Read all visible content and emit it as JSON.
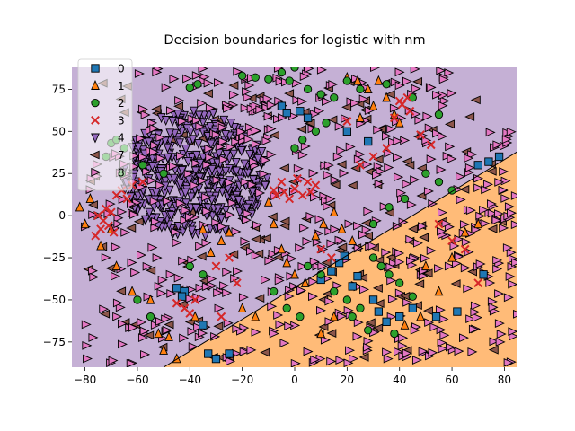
{
  "chart_data": {
    "type": "scatter",
    "title": "Decision boundaries for logistic with nm",
    "xlabel": "",
    "ylabel": "",
    "xlim": [
      -85,
      85
    ],
    "ylim": [
      -90,
      88
    ],
    "x_ticks": [
      -80,
      -60,
      -40,
      -20,
      0,
      20,
      40,
      60,
      80
    ],
    "y_ticks": [
      -75,
      -50,
      -25,
      0,
      25,
      50,
      75
    ],
    "grid": false,
    "legend_position": "top-left",
    "regions": [
      {
        "class": "4",
        "color": "#c5b0d5",
        "description": "upper-left region"
      },
      {
        "class": "8",
        "color": "#ffbb78",
        "description": "lower-right region"
      }
    ],
    "boundary_line": {
      "x": [
        -50,
        85
      ],
      "y": [
        -90,
        38
      ]
    },
    "series": [
      {
        "name": "0",
        "marker": "square",
        "color": "#1f77b4",
        "points": [
          [
            -45,
            -43
          ],
          [
            -42,
            -45
          ],
          [
            -35,
            -65
          ],
          [
            -33,
            -82
          ],
          [
            -30,
            -85
          ],
          [
            -25,
            -82
          ],
          [
            -5,
            65
          ],
          [
            -3,
            61
          ],
          [
            2,
            62
          ],
          [
            5,
            58
          ],
          [
            10,
            -38
          ],
          [
            14,
            -33
          ],
          [
            17,
            -28
          ],
          [
            19,
            -24
          ],
          [
            22,
            -42
          ],
          [
            24,
            -36
          ],
          [
            30,
            -50
          ],
          [
            32,
            -57
          ],
          [
            35,
            -63
          ],
          [
            40,
            -60
          ],
          [
            45,
            -55
          ],
          [
            54,
            -60
          ],
          [
            62,
            -57
          ],
          [
            70,
            30
          ],
          [
            74,
            32
          ],
          [
            78,
            35
          ],
          [
            72,
            -35
          ],
          [
            20,
            50
          ],
          [
            28,
            44
          ],
          [
            -43,
            -48
          ]
        ]
      },
      {
        "name": "1",
        "marker": "triangle-up",
        "color": "#ff7f0e",
        "points": [
          [
            -80,
            -5
          ],
          [
            -82,
            5
          ],
          [
            -78,
            10
          ],
          [
            -70,
            -8
          ],
          [
            -74,
            -18
          ],
          [
            -68,
            -30
          ],
          [
            -62,
            -45
          ],
          [
            -55,
            -50
          ],
          [
            -52,
            -70
          ],
          [
            -48,
            -72
          ],
          [
            -38,
            -60
          ],
          [
            -10,
            8
          ],
          [
            -8,
            -5
          ],
          [
            -5,
            -20
          ],
          [
            -3,
            -28
          ],
          [
            0,
            -35
          ],
          [
            4,
            -40
          ],
          [
            8,
            -12
          ],
          [
            11,
            -5
          ],
          [
            15,
            2
          ],
          [
            18,
            -8
          ],
          [
            22,
            -15
          ],
          [
            25,
            58
          ],
          [
            30,
            65
          ],
          [
            35,
            70
          ],
          [
            38,
            60
          ],
          [
            40,
            55
          ],
          [
            28,
            75
          ],
          [
            32,
            80
          ],
          [
            -50,
            -80
          ],
          [
            -45,
            -85
          ],
          [
            20,
            82
          ],
          [
            24,
            80
          ],
          [
            50,
            -30
          ],
          [
            55,
            -45
          ],
          [
            60,
            -25
          ],
          [
            65,
            -10
          ],
          [
            70,
            -5
          ],
          [
            42,
            -65
          ],
          [
            48,
            -60
          ],
          [
            15,
            -60
          ],
          [
            10,
            -70
          ],
          [
            -15,
            -60
          ],
          [
            -20,
            -55
          ],
          [
            -25,
            -10
          ],
          [
            -28,
            -15
          ],
          [
            -32,
            -22
          ],
          [
            -35,
            -8
          ]
        ]
      },
      {
        "name": "2",
        "marker": "circle",
        "color": "#2ca02c",
        "points": [
          [
            -40,
            76
          ],
          [
            -37,
            78
          ],
          [
            -20,
            83
          ],
          [
            -15,
            82
          ],
          [
            -10,
            81
          ],
          [
            -5,
            85
          ],
          [
            0,
            88
          ],
          [
            -2,
            80
          ],
          [
            5,
            75
          ],
          [
            10,
            72
          ],
          [
            15,
            70
          ],
          [
            20,
            80
          ],
          [
            25,
            75
          ],
          [
            35,
            78
          ],
          [
            45,
            70
          ],
          [
            55,
            60
          ],
          [
            -70,
            43
          ],
          [
            -68,
            45
          ],
          [
            -65,
            40
          ],
          [
            -72,
            35
          ],
          [
            -66,
            25
          ],
          [
            -58,
            30
          ],
          [
            -50,
            25
          ],
          [
            5,
            -30
          ],
          [
            10,
            -35
          ],
          [
            15,
            -45
          ],
          [
            20,
            -50
          ],
          [
            25,
            -55
          ],
          [
            30,
            -25
          ],
          [
            33,
            -30
          ],
          [
            36,
            -35
          ],
          [
            40,
            -40
          ],
          [
            45,
            -48
          ],
          [
            38,
            -70
          ],
          [
            22,
            -60
          ],
          [
            28,
            -68
          ],
          [
            -8,
            -45
          ],
          [
            -3,
            -55
          ],
          [
            2,
            -60
          ],
          [
            0,
            40
          ],
          [
            3,
            45
          ],
          [
            8,
            50
          ],
          [
            12,
            55
          ],
          [
            50,
            25
          ],
          [
            55,
            20
          ],
          [
            60,
            15
          ],
          [
            42,
            10
          ],
          [
            36,
            5
          ],
          [
            30,
            -5
          ],
          [
            -40,
            -30
          ],
          [
            -35,
            -35
          ],
          [
            -60,
            -50
          ],
          [
            -55,
            -60
          ]
        ]
      },
      {
        "name": "3",
        "marker": "x",
        "color": "#d62728",
        "points": [
          [
            -75,
            0
          ],
          [
            -73,
            -3
          ],
          [
            -71,
            -6
          ],
          [
            -72,
            4
          ],
          [
            -70,
            2
          ],
          [
            -69,
            -10
          ],
          [
            -74,
            -8
          ],
          [
            -76,
            -12
          ],
          [
            -68,
            12
          ],
          [
            -66,
            15
          ],
          [
            -64,
            10
          ],
          [
            -62,
            18
          ],
          [
            -58,
            20
          ],
          [
            -7,
            12
          ],
          [
            -4,
            14
          ],
          [
            -2,
            10
          ],
          [
            0,
            16
          ],
          [
            3,
            12
          ],
          [
            6,
            14
          ],
          [
            5,
            20
          ],
          [
            8,
            18
          ],
          [
            -5,
            20
          ],
          [
            -8,
            15
          ],
          [
            1,
            22
          ],
          [
            40,
            68
          ],
          [
            43,
            70
          ],
          [
            41,
            66
          ],
          [
            44,
            62
          ],
          [
            38,
            58
          ],
          [
            20,
            56
          ],
          [
            25,
            30
          ],
          [
            30,
            35
          ],
          [
            35,
            40
          ],
          [
            48,
            48
          ],
          [
            52,
            42
          ],
          [
            -45,
            -52
          ],
          [
            -42,
            -55
          ],
          [
            -40,
            -58
          ],
          [
            -38,
            -50
          ],
          [
            -25,
            -25
          ],
          [
            -30,
            -30
          ],
          [
            -22,
            -40
          ],
          [
            10,
            -20
          ],
          [
            14,
            -25
          ],
          [
            60,
            -15
          ],
          [
            65,
            -20
          ],
          [
            55,
            -5
          ],
          [
            70,
            -40
          ],
          [
            -28,
            -60
          ]
        ]
      },
      {
        "name": "4",
        "marker": "triangle-down",
        "color": "#9467bd",
        "region": {
          "x": [
            -70,
            -10
          ],
          "y": [
            -15,
            65
          ]
        },
        "count": 480
      },
      {
        "name": "7",
        "marker": "triangle-left",
        "color": "#8c564b",
        "region": {
          "x": [
            -80,
            80
          ],
          "y": [
            -85,
            80
          ]
        },
        "count": 160
      },
      {
        "name": "8",
        "marker": "triangle-right",
        "color": "#e377c2",
        "region": {
          "x": [
            -80,
            85
          ],
          "y": [
            -88,
            88
          ]
        },
        "count": 620
      }
    ]
  }
}
